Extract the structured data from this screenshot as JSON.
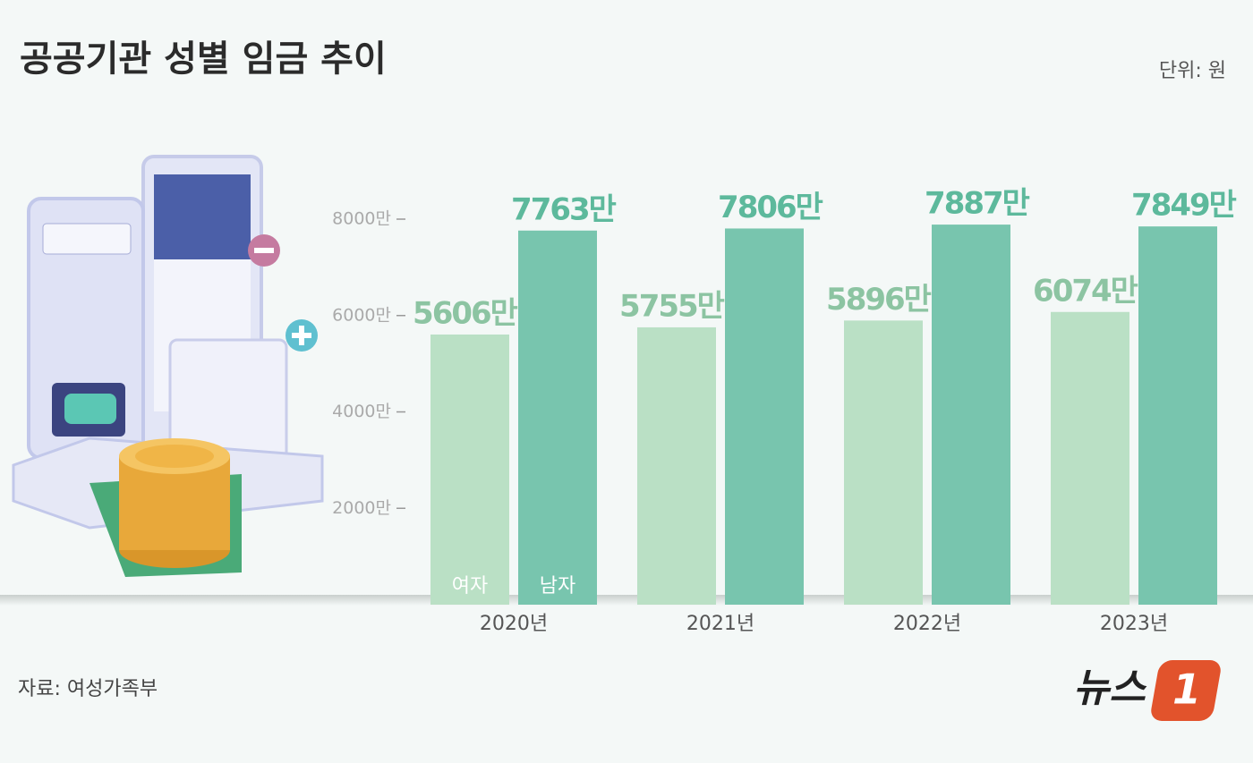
{
  "chart_data": {
    "type": "bar",
    "title": "공공기관 성별 임금 추이",
    "unit": "단위: 원",
    "source": "자료: 여성가족부",
    "brand": [
      "뉴스",
      "1"
    ],
    "categories": [
      "2020년",
      "2021년",
      "2022년",
      "2023년"
    ],
    "series": [
      {
        "name": "여자",
        "color": "#bae0c5",
        "values": [
          5606,
          5755,
          5896,
          6074
        ],
        "value_labels": [
          "5606만",
          "5755만",
          "5896만",
          "6074만"
        ],
        "label_color": "#8cc4a2"
      },
      {
        "name": "남자",
        "color": "#78c5ae",
        "values": [
          7763,
          7806,
          7887,
          7849
        ],
        "value_labels": [
          "7763만",
          "7806만",
          "7887만",
          "7849만"
        ],
        "label_color": "#5db99c"
      }
    ],
    "ylim": [
      0,
      8000
    ],
    "yticks": [
      {
        "value": 2000,
        "label": "2000만"
      },
      {
        "value": 4000,
        "label": "4000만"
      },
      {
        "value": 6000,
        "label": "6000만"
      },
      {
        "value": 8000,
        "label": "8000만"
      }
    ],
    "grid": false
  }
}
